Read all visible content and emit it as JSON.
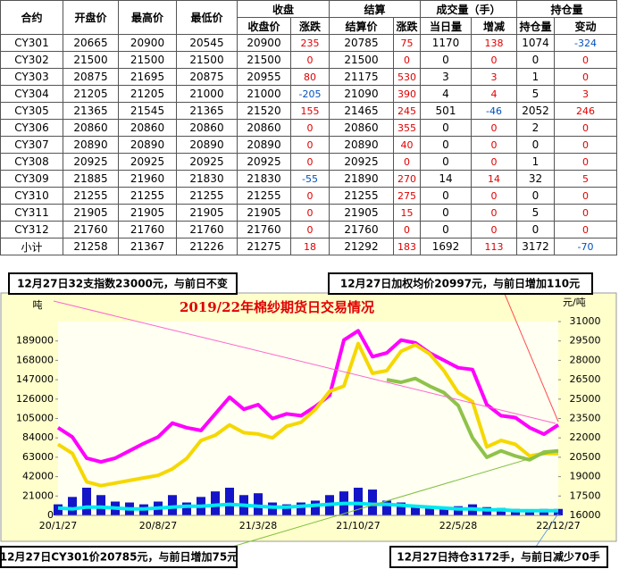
{
  "table": {
    "header1": [
      "合约",
      "开盘价",
      "最高价",
      "最低价",
      "收盘",
      "结算",
      "成交量（手）",
      "持仓量"
    ],
    "header2": [
      "收盘价",
      "涨跌",
      "结算价",
      "涨跌",
      "当日量",
      "增减",
      "持仓量",
      "变动"
    ],
    "rows": [
      [
        "CY301",
        20665,
        20900,
        20545,
        20900,
        235,
        20785,
        75,
        1170,
        138,
        1074,
        -324
      ],
      [
        "CY302",
        21500,
        21500,
        21500,
        21500,
        0,
        21500,
        0,
        0,
        0,
        0,
        0
      ],
      [
        "CY303",
        20875,
        21695,
        20875,
        20955,
        80,
        21175,
        530,
        3,
        3,
        1,
        0
      ],
      [
        "CY304",
        21205,
        21205,
        21000,
        21000,
        -205,
        21090,
        390,
        4,
        4,
        5,
        3
      ],
      [
        "CY305",
        21365,
        21545,
        21365,
        21520,
        155,
        21465,
        245,
        501,
        -46,
        2052,
        246
      ],
      [
        "CY306",
        20860,
        20860,
        20860,
        20860,
        0,
        20860,
        355,
        0,
        0,
        2,
        0
      ],
      [
        "CY307",
        20890,
        20890,
        20890,
        20890,
        0,
        20890,
        40,
        0,
        0,
        0,
        0
      ],
      [
        "CY308",
        20925,
        20925,
        20925,
        20925,
        0,
        20925,
        0,
        0,
        0,
        1,
        0
      ],
      [
        "CY309",
        21885,
        21960,
        21830,
        21830,
        -55,
        21890,
        270,
        14,
        14,
        32,
        5
      ],
      [
        "CY310",
        21255,
        21255,
        21255,
        21255,
        0,
        21255,
        275,
        0,
        0,
        0,
        0
      ],
      [
        "CY311",
        21905,
        21905,
        21905,
        21905,
        0,
        21905,
        15,
        0,
        0,
        5,
        0
      ],
      [
        "CY312",
        21760,
        21760,
        21760,
        21760,
        0,
        21760,
        0,
        0,
        0,
        0,
        0
      ],
      [
        "小计",
        21258,
        21367,
        21226,
        21275,
        18,
        21292,
        183,
        1692,
        113,
        3172,
        -70
      ]
    ]
  },
  "callouts": [
    "12月27日32支指数23000元，与前日不变",
    "12月27日加权均价20997元，与前日增加110元",
    "12月27日CY301价20785元，与前日增加75元",
    "12月27日持仓3172手，与前日减少70手"
  ],
  "chart_data": {
    "type": "line",
    "title": "2019/22年棉纱期货日交易情况",
    "ylabel": "吨",
    "y2label": "元/吨",
    "categories": [
      "20/1/27",
      null,
      null,
      null,
      null,
      null,
      null,
      "20/8/27",
      null,
      null,
      null,
      null,
      null,
      null,
      "21/3/28",
      null,
      null,
      null,
      null,
      null,
      null,
      "21/10/27",
      null,
      null,
      null,
      null,
      null,
      null,
      "22/5/28",
      null,
      null,
      null,
      null,
      null,
      null,
      "22/12/27"
    ],
    "ylim": [
      0,
      210000
    ],
    "yticks": [
      0,
      21000,
      42000,
      63000,
      84000,
      105000,
      126000,
      147000,
      168000,
      189000
    ],
    "y2lim": [
      16000,
      31000
    ],
    "y2ticks": [
      16000,
      17500,
      19000,
      20500,
      22000,
      23500,
      25000,
      26500,
      28000,
      29500,
      31000
    ],
    "grid": false,
    "series": [
      {
        "type": "bar",
        "color": "#1414c8",
        "values": [
          12000,
          20000,
          30000,
          22000,
          15000,
          14000,
          12000,
          15000,
          22000,
          14000,
          20000,
          26000,
          30000,
          22000,
          24000,
          14000,
          12000,
          14000,
          16000,
          22000,
          26000,
          30000,
          28000,
          16000,
          14000,
          10000,
          9000,
          8000,
          10000,
          12000,
          9000,
          8000,
          7000,
          6000,
          7000,
          7000
        ]
      },
      {
        "type": "line",
        "color": "#00e8f0",
        "values": [
          8000,
          7000,
          9000,
          9000,
          8000,
          7000,
          7000,
          8000,
          9000,
          10000,
          10000,
          11000,
          12000,
          11000,
          10000,
          9000,
          9000,
          10000,
          11000,
          12000,
          13000,
          13000,
          12000,
          12000,
          11000,
          10000,
          9000,
          8000,
          7000,
          7000,
          6000,
          6000,
          5000,
          5000,
          5000,
          5000
        ]
      },
      {
        "type": "line",
        "color": "#ff00ff",
        "values": [
          95000,
          85000,
          62000,
          58000,
          62000,
          70000,
          78000,
          85000,
          100000,
          95000,
          92000,
          110000,
          128000,
          115000,
          120000,
          105000,
          110000,
          108000,
          118000,
          130000,
          190000,
          200000,
          172000,
          176000,
          190000,
          187000,
          176000,
          168000,
          160000,
          158000,
          120000,
          108000,
          106000,
          95000,
          88000,
          98000
        ]
      },
      {
        "type": "line",
        "axis": "y2",
        "color": "#f5d800",
        "values": [
          21500,
          20800,
          18600,
          18300,
          18500,
          18700,
          18900,
          19100,
          19600,
          20400,
          21800,
          22200,
          23000,
          22400,
          22300,
          22000,
          22900,
          23200,
          24200,
          25600,
          26000,
          29300,
          27000,
          27200,
          28700,
          29200,
          28500,
          27200,
          25500,
          24800,
          21300,
          21800,
          21500,
          20600,
          20800,
          20785
        ]
      },
      {
        "type": "line",
        "axis": "y2",
        "color": "#8fc24a",
        "values": [
          null,
          null,
          null,
          null,
          null,
          null,
          null,
          null,
          null,
          null,
          null,
          null,
          null,
          null,
          null,
          null,
          null,
          null,
          null,
          null,
          null,
          null,
          null,
          26500,
          26300,
          26600,
          26000,
          25500,
          24500,
          22000,
          20500,
          21000,
          20600,
          20300,
          20900,
          21000
        ]
      }
    ]
  }
}
